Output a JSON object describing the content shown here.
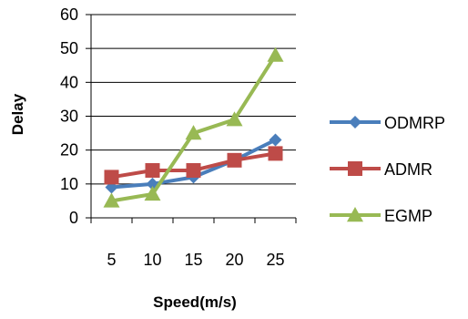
{
  "chart_data": {
    "type": "line",
    "categories": [
      "5",
      "10",
      "15",
      "20",
      "25"
    ],
    "series": [
      {
        "name": "ODMRP",
        "values": [
          9,
          10,
          12,
          17,
          23
        ],
        "color": "#4A7EBB",
        "marker": "diamond"
      },
      {
        "name": "ADMR",
        "values": [
          12,
          14,
          14,
          17,
          19
        ],
        "color": "#BE4B48",
        "marker": "square"
      },
      {
        "name": "EGMP",
        "values": [
          5,
          7,
          25,
          29,
          48
        ],
        "color": "#98B954",
        "marker": "triangle"
      }
    ],
    "title": "",
    "xlabel": "Speed(m/s)",
    "ylabel": "Delay",
    "ylim": [
      0,
      60
    ],
    "yticks": [
      "0",
      "10",
      "20",
      "30",
      "40",
      "50",
      "60"
    ],
    "grid": true,
    "legend_position": "right"
  }
}
